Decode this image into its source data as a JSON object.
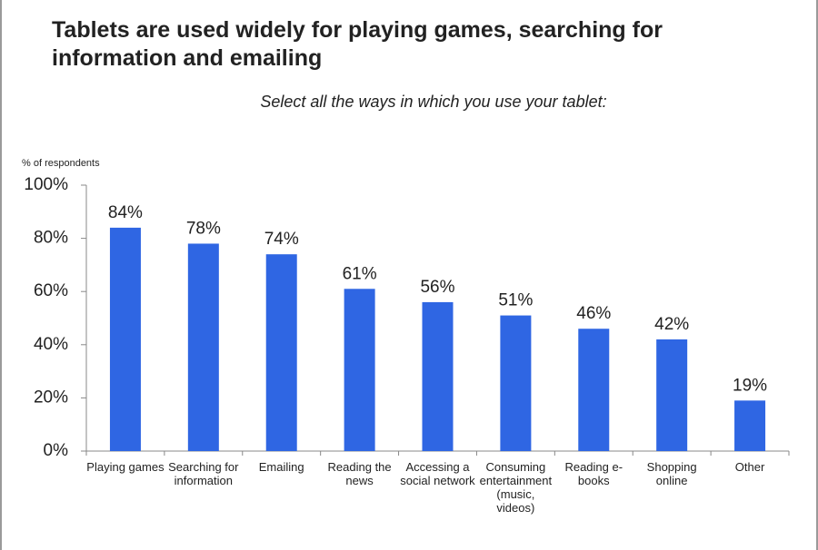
{
  "chart_data": {
    "type": "bar",
    "title": "Tablets are used widely for playing games, searching for information and emailing",
    "subtitle": "Select all the ways in which you use your tablet:",
    "y_axis_label": "% of respondents",
    "categories": [
      "Playing games",
      "Searching for information",
      "Emailing",
      "Reading the news",
      "Accessing a social network",
      "Consuming entertainment (music, videos)",
      "Reading e-books",
      "Shopping online",
      "Other"
    ],
    "values": [
      84,
      78,
      74,
      61,
      56,
      51,
      46,
      42,
      19
    ],
    "value_labels": [
      "84%",
      "78%",
      "74%",
      "61%",
      "56%",
      "51%",
      "46%",
      "42%",
      "19%"
    ],
    "color": "#2f66e3",
    "ylim": [
      0,
      100
    ],
    "yticks": [
      {
        "value": 0,
        "label": "0%"
      },
      {
        "value": 20,
        "label": "20%"
      },
      {
        "value": 40,
        "label": "40%"
      },
      {
        "value": 60,
        "label": "60%"
      },
      {
        "value": 80,
        "label": "80%"
      },
      {
        "value": 100,
        "label": "100%"
      }
    ],
    "grid": false
  }
}
